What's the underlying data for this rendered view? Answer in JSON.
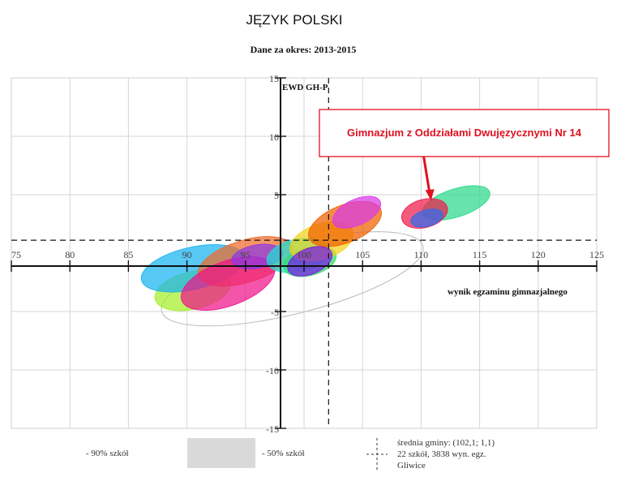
{
  "title": "JĘZYK POLSKI",
  "subtitle": "Dane za okres: 2013-2015",
  "chart_data": {
    "type": "scatter",
    "xlabel": "wynik egzaminu gimnazjalnego",
    "ylabel": "EWD GH-P",
    "xlim": [
      75,
      125
    ],
    "ylim": [
      -15,
      15
    ],
    "x_ticks": [
      "75",
      "80",
      "85",
      "90",
      "95",
      "100",
      "105",
      "110",
      "115",
      "120",
      "125"
    ],
    "y_ticks": [
      "15",
      "10",
      "5",
      "-5",
      "-10",
      "-15"
    ],
    "grid": true,
    "reference_lines": {
      "x": 102.1,
      "y": 1.1
    },
    "ellipses": [
      {
        "cx": 99.0,
        "cy": -2.2,
        "rx": 11.5,
        "ry": 3.0,
        "angle": 14,
        "color": "#d9d9d9",
        "type": "50%"
      },
      {
        "cx": 90.5,
        "cy": -3.2,
        "rx": 3.3,
        "ry": 1.6,
        "angle": 13,
        "color": "#a3ef2a"
      },
      {
        "cx": 90.5,
        "cy": -1.3,
        "rx": 4.5,
        "ry": 1.8,
        "angle": 13,
        "color": "#17b3f0"
      },
      {
        "cx": 95.0,
        "cy": -0.7,
        "rx": 4.2,
        "ry": 1.8,
        "angle": 17,
        "color": "#f06a2a"
      },
      {
        "cx": 93.5,
        "cy": -2.6,
        "rx": 4.2,
        "ry": 1.9,
        "angle": 20,
        "color": "#ee1489"
      },
      {
        "cx": 96.0,
        "cy": -0.3,
        "rx": 2.2,
        "ry": 1.0,
        "angle": 10,
        "color": "#8c39e4"
      },
      {
        "cx": 99.5,
        "cy": -0.2,
        "rx": 2.7,
        "ry": 1.4,
        "angle": 12,
        "color": "#1ce0d4"
      },
      {
        "cx": 100.5,
        "cy": -0.7,
        "rx": 2.3,
        "ry": 1.2,
        "angle": 15,
        "color": "#30e05f"
      },
      {
        "cx": 101.5,
        "cy": 1.0,
        "rx": 2.8,
        "ry": 1.5,
        "angle": 18,
        "color": "#f3d21a"
      },
      {
        "cx": 100.5,
        "cy": -0.7,
        "rx": 2.0,
        "ry": 1.1,
        "angle": 22,
        "color": "#7b18ee"
      },
      {
        "cx": 103.5,
        "cy": 2.5,
        "rx": 3.3,
        "ry": 1.6,
        "angle": 22,
        "color": "#f06000"
      },
      {
        "cx": 104.5,
        "cy": 3.5,
        "rx": 2.2,
        "ry": 1.1,
        "angle": 25,
        "color": "#d83ae7"
      },
      {
        "cx": 113.0,
        "cy": 4.3,
        "rx": 3.0,
        "ry": 1.2,
        "angle": 18,
        "color": "#2bd98b"
      },
      {
        "cx": 110.3,
        "cy": 3.4,
        "rx": 2.0,
        "ry": 1.2,
        "angle": 15,
        "color": "#ee1a4a",
        "highlighted": true
      },
      {
        "cx": 110.5,
        "cy": 3.0,
        "rx": 1.4,
        "ry": 0.7,
        "angle": 15,
        "color": "#2f6cf0"
      }
    ],
    "callout": {
      "text": "Gimnazjum z Oddziałami Dwujęzycznymi Nr 14",
      "target_x": 110.5,
      "target_y": 4.5,
      "color": "#e01020"
    }
  },
  "legend": {
    "pct90": "- 90% szkół",
    "pct50": "- 50% szkół",
    "mean": "średnia gminy: (102,1; 1,1)",
    "count": "22 szkół, 3838 wyn. egz.",
    "city": "Gliwice"
  }
}
